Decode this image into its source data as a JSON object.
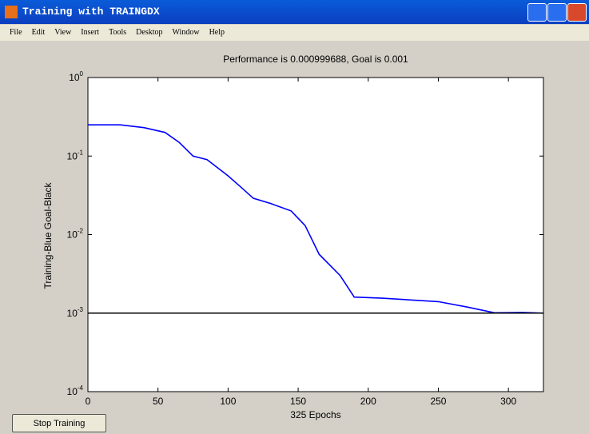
{
  "window": {
    "title": "Training with TRAINGDX",
    "menu": [
      "File",
      "Edit",
      "View",
      "Insert",
      "Tools",
      "Desktop",
      "Window",
      "Help"
    ],
    "button": "Stop Training"
  },
  "chart_data": {
    "type": "line",
    "title": "Performance is 0.000999688, Goal is 0.001",
    "x_label": "325 Epochs",
    "y_label": "Training-Blue  Goal-Black",
    "log_y": true,
    "xlim": [
      0,
      325
    ],
    "xticks": [
      0,
      50,
      100,
      150,
      200,
      250,
      300
    ],
    "ylim": [
      0.0001,
      1
    ],
    "yticks": [
      {
        "value": 0.0001,
        "label": "10^-4"
      },
      {
        "value": 0.001,
        "label": "10^-3"
      },
      {
        "value": 0.01,
        "label": "10^-2"
      },
      {
        "value": 0.1,
        "label": "10^-1"
      },
      {
        "value": 1,
        "label": "10^0"
      }
    ],
    "series": [
      {
        "color": "#0000ff",
        "x": [
          0,
          23,
          40,
          55,
          65,
          75,
          85,
          100,
          110,
          118,
          130,
          145,
          155,
          165,
          180,
          190,
          210,
          250,
          270,
          290,
          310,
          325
        ],
        "values": [
          0.25,
          0.25,
          0.23,
          0.2,
          0.15,
          0.1,
          0.09,
          0.056,
          0.039,
          0.029,
          0.025,
          0.02,
          0.013,
          0.0056,
          0.003,
          0.0016,
          0.00155,
          0.0014,
          0.0012,
          0.00101,
          0.00102,
          0.000999688
        ]
      },
      {
        "color": "#000000",
        "x": [
          0,
          325
        ],
        "values": [
          0.001,
          0.001
        ]
      }
    ]
  }
}
